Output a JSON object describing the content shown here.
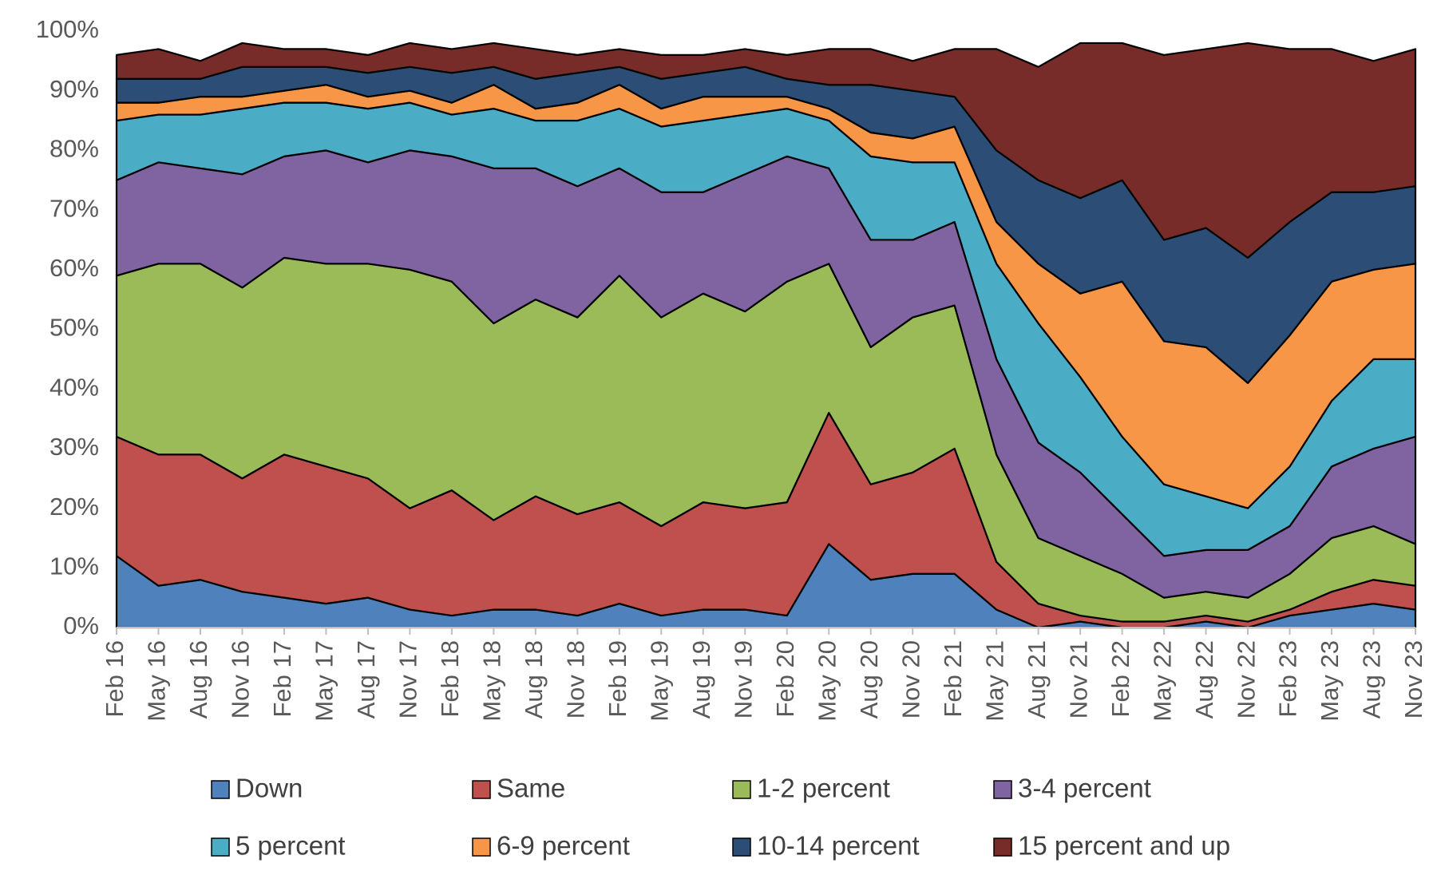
{
  "chart_data": {
    "type": "stacked-area",
    "categories": [
      "Feb 16",
      "May 16",
      "Aug 16",
      "Nov 16",
      "Feb 17",
      "May 17",
      "Aug 17",
      "Nov 17",
      "Feb 18",
      "May 18",
      "Aug 18",
      "Nov 18",
      "Feb 19",
      "May 19",
      "Aug 19",
      "Nov 19",
      "Feb 20",
      "May 20",
      "Aug 20",
      "Nov 20",
      "Feb 21",
      "May 21",
      "Aug 21",
      "Nov 21",
      "Feb 22",
      "May 22",
      "Aug 22",
      "Nov 22",
      "Feb 23",
      "May 23",
      "Aug 23",
      "Nov 23"
    ],
    "series": [
      {
        "name": "Down",
        "color": "#4f81bd",
        "values": [
          12,
          7,
          8,
          6,
          5,
          4,
          5,
          3,
          2,
          3,
          3,
          2,
          4,
          2,
          3,
          3,
          2,
          14,
          8,
          9,
          9,
          3,
          0,
          1,
          0,
          0,
          1,
          0,
          2,
          3,
          4,
          3
        ]
      },
      {
        "name": "Same",
        "color": "#c0504d",
        "values": [
          20,
          22,
          21,
          19,
          24,
          23,
          20,
          17,
          21,
          15,
          19,
          17,
          17,
          15,
          18,
          17,
          19,
          22,
          16,
          17,
          21,
          8,
          4,
          1,
          1,
          1,
          1,
          1,
          1,
          3,
          4,
          4
        ]
      },
      {
        "name": "1-2 percent",
        "color": "#9bbb59",
        "values": [
          27,
          32,
          32,
          32,
          33,
          34,
          36,
          40,
          35,
          33,
          33,
          33,
          38,
          35,
          35,
          33,
          37,
          25,
          23,
          26,
          24,
          18,
          11,
          10,
          8,
          4,
          4,
          4,
          6,
          9,
          9,
          7
        ]
      },
      {
        "name": "3-4 percent",
        "color": "#8064a2",
        "values": [
          16,
          17,
          16,
          19,
          17,
          19,
          17,
          20,
          21,
          26,
          22,
          22,
          18,
          21,
          17,
          23,
          21,
          16,
          18,
          13,
          14,
          16,
          16,
          14,
          10,
          7,
          7,
          8,
          8,
          12,
          13,
          18
        ]
      },
      {
        "name": "5 percent",
        "color": "#4bacc6",
        "values": [
          10,
          8,
          9,
          11,
          9,
          8,
          9,
          8,
          7,
          10,
          8,
          11,
          10,
          11,
          12,
          10,
          8,
          8,
          14,
          13,
          10,
          16,
          20,
          16,
          13,
          12,
          9,
          7,
          10,
          11,
          15,
          13
        ]
      },
      {
        "name": "6-9 percent",
        "color": "#f79646",
        "values": [
          3,
          2,
          3,
          2,
          2,
          3,
          2,
          2,
          2,
          4,
          2,
          3,
          4,
          3,
          4,
          3,
          2,
          2,
          4,
          4,
          6,
          7,
          10,
          14,
          26,
          24,
          25,
          21,
          22,
          20,
          15,
          16
        ]
      },
      {
        "name": "10-14 percent",
        "color": "#2c4d75",
        "values": [
          4,
          4,
          3,
          5,
          4,
          3,
          4,
          4,
          5,
          3,
          5,
          5,
          3,
          5,
          4,
          5,
          3,
          4,
          8,
          8,
          5,
          12,
          14,
          16,
          17,
          17,
          20,
          21,
          19,
          15,
          13,
          13
        ]
      },
      {
        "name": "15 percent and up",
        "color": "#772c2a",
        "values": [
          4,
          5,
          3,
          4,
          3,
          3,
          3,
          4,
          4,
          4,
          5,
          3,
          3,
          4,
          3,
          3,
          4,
          6,
          6,
          5,
          8,
          17,
          19,
          26,
          23,
          31,
          30,
          36,
          29,
          24,
          22,
          23
        ]
      }
    ],
    "ylim": [
      0,
      100
    ],
    "yticks": [
      {
        "value": 0,
        "label": "0%"
      },
      {
        "value": 10,
        "label": "10%"
      },
      {
        "value": 20,
        "label": "20%"
      },
      {
        "value": 30,
        "label": "30%"
      },
      {
        "value": 40,
        "label": "40%"
      },
      {
        "value": 50,
        "label": "50%"
      },
      {
        "value": 60,
        "label": "60%"
      },
      {
        "value": 70,
        "label": "70%"
      },
      {
        "value": 80,
        "label": "80%"
      },
      {
        "value": 90,
        "label": "90%"
      },
      {
        "value": 100,
        "label": "100%"
      }
    ],
    "legend": "bottom"
  }
}
